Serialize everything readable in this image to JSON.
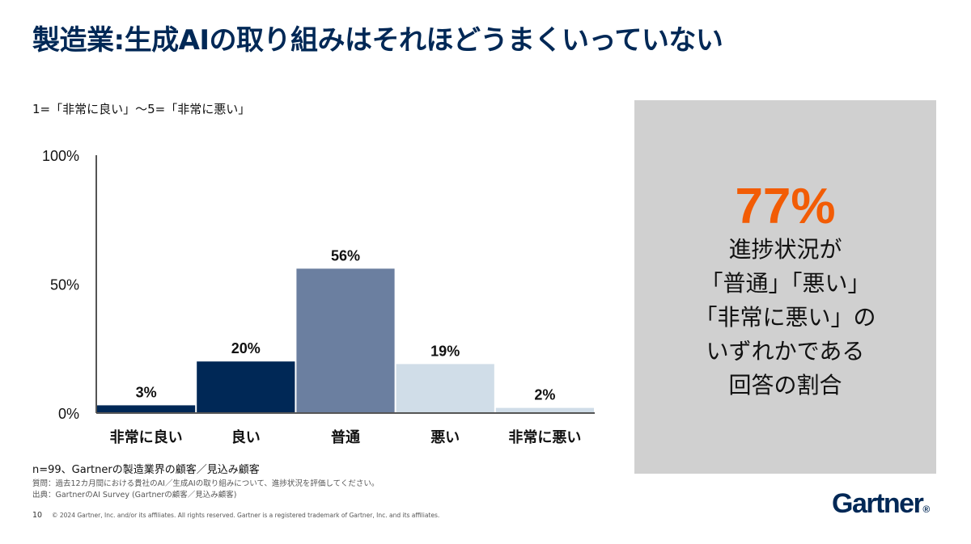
{
  "title": "製造業:生成AIの取り組みはそれほどうまくいっていない",
  "scale_note": "1=「非常に良い」～5=「非常に悪い」",
  "chart_data": {
    "type": "bar",
    "categories": [
      "非常に良い",
      "良い",
      "普通",
      "悪い",
      "非常に悪い"
    ],
    "values": [
      3,
      20,
      56,
      19,
      2
    ],
    "data_labels": [
      "3%",
      "20%",
      "56%",
      "19%",
      "2%"
    ],
    "colors": [
      "#002856",
      "#002856",
      "#6b7fa0",
      "#d0dde8",
      "#d0dde8"
    ],
    "y_ticks": [
      0,
      50,
      100
    ],
    "y_tick_labels": [
      "0%",
      "50%",
      "100%"
    ],
    "ylim": [
      0,
      100
    ],
    "grid": false,
    "title": "",
    "xlabel": "",
    "ylabel": ""
  },
  "callout": {
    "percent": "77%",
    "lines": [
      "進捗状況が",
      "「普通」「悪い」",
      "「非常に悪い」の",
      "いずれかである",
      "回答の割合"
    ],
    "accent_color": "#f25c05"
  },
  "footnotes": {
    "sample": "n=99、Gartnerの製造業界の顧客／見込み顧客",
    "question": "質問：過去12カ月間における貴社のAI／生成AIの取り組みについて、進捗状況を評価してください。",
    "source": "出典：GartnerのAI Survey (Gartnerの顧客／見込み顧客)"
  },
  "page_number": "10",
  "copyright": "© 2024 Gartner, Inc. and/or its affiliates. All rights reserved. Gartner is a registered trademark of Gartner, Inc. and its affiliates.",
  "logo": {
    "text": "Gartner",
    "mark": "®",
    "color": "#002856"
  }
}
